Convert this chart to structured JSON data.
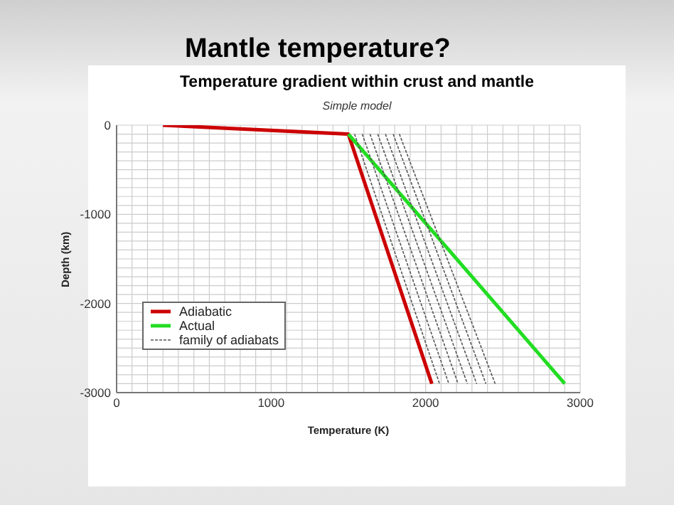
{
  "chart_data": {
    "type": "line",
    "title": "Mantle temperature?",
    "subtitle": "Temperature gradient within crust and mantle",
    "annotations": [
      "Simple model"
    ],
    "xlabel": "Temperature (K)",
    "ylabel": "Depth (km)",
    "xlim": [
      0,
      3000
    ],
    "ylim": [
      -3000,
      0
    ],
    "xticks": [
      0,
      {
        "value": 100,
        "label": null
      },
      {
        "value": 200,
        "label": null
      },
      {
        "value": 300,
        "label": null
      },
      {
        "value": 400,
        "label": null
      },
      {
        "value": 500,
        "label": null
      },
      {
        "value": 600,
        "label": null
      },
      {
        "value": 700,
        "label": null
      },
      {
        "value": 800,
        "label": null
      },
      {
        "value": 900,
        "label": null
      },
      1000,
      {
        "value": 1100,
        "label": null
      },
      {
        "value": 1200,
        "label": null
      },
      {
        "value": 1300,
        "label": null
      },
      {
        "value": 1400,
        "label": null
      },
      {
        "value": 1500,
        "label": null
      },
      {
        "value": 1600,
        "label": null
      },
      {
        "value": 1700,
        "label": null
      },
      {
        "value": 1800,
        "label": null
      },
      {
        "value": 1900,
        "label": null
      },
      2000,
      {
        "value": 2100,
        "label": null
      },
      {
        "value": 2200,
        "label": null
      },
      {
        "value": 2300,
        "label": null
      },
      {
        "value": 2400,
        "label": null
      },
      {
        "value": 2500,
        "label": null
      },
      {
        "value": 2600,
        "label": null
      },
      {
        "value": 2700,
        "label": null
      },
      {
        "value": 2800,
        "label": null
      },
      {
        "value": 2900,
        "label": null
      },
      3000
    ],
    "yticks": [
      -3000,
      {
        "value": -2900,
        "label": null
      },
      {
        "value": -2800,
        "label": null
      },
      {
        "value": -2700,
        "label": null
      },
      {
        "value": -2600,
        "label": null
      },
      {
        "value": -2500,
        "label": null
      },
      {
        "value": -2400,
        "label": null
      },
      {
        "value": -2300,
        "label": null
      },
      {
        "value": -2200,
        "label": null
      },
      {
        "value": -2100,
        "label": null
      },
      -2000,
      {
        "value": -1900,
        "label": null
      },
      {
        "value": -1800,
        "label": null
      },
      {
        "value": -1700,
        "label": null
      },
      {
        "value": -1600,
        "label": null
      },
      {
        "value": -1500,
        "label": null
      },
      {
        "value": -1400,
        "label": null
      },
      {
        "value": -1300,
        "label": null
      },
      {
        "value": -1200,
        "label": null
      },
      {
        "value": -1100,
        "label": null
      },
      -1000,
      {
        "value": -900,
        "label": null
      },
      {
        "value": -800,
        "label": null
      },
      {
        "value": -700,
        "label": null
      },
      {
        "value": -600,
        "label": null
      },
      {
        "value": -500,
        "label": null
      },
      {
        "value": -400,
        "label": null
      },
      {
        "value": -300,
        "label": null
      },
      {
        "value": -200,
        "label": null
      },
      {
        "value": -100,
        "label": null
      },
      0
    ],
    "grid": true,
    "legend": "bottom left",
    "marker": "none",
    "series": [
      {
        "name": "Adiabatic",
        "color": "#cc0000",
        "x": [
          300,
          1500,
          2040
        ],
        "values": [
          0,
          -100,
          -2900
        ]
      },
      {
        "name": "Actual",
        "color": "#22dd22",
        "x": [
          1500,
          2900
        ],
        "values": [
          -100,
          -2900
        ]
      },
      {
        "name": "family of adiabats",
        "color": "#555555",
        "line_style": "dashed",
        "x": [
          1540,
          2090
        ],
        "values": [
          -100,
          -2900
        ]
      },
      {
        "color": "#555555",
        "line_style": "dashed",
        "x": [
          1590,
          2150
        ],
        "values": [
          -100,
          -2900
        ]
      },
      {
        "color": "#555555",
        "line_style": "dashed",
        "x": [
          1640,
          2210
        ],
        "values": [
          -100,
          -2900
        ]
      },
      {
        "color": "#555555",
        "line_style": "dashed",
        "x": [
          1690,
          2270
        ],
        "values": [
          -100,
          -2900
        ]
      },
      {
        "color": "#555555",
        "line_style": "dashed",
        "x": [
          1740,
          2330
        ],
        "values": [
          -100,
          -2900
        ]
      },
      {
        "color": "#555555",
        "line_style": "dashed",
        "x": [
          1790,
          2390
        ],
        "values": [
          -100,
          -2900
        ]
      },
      {
        "color": "#555555",
        "line_style": "dashed",
        "x": [
          1830,
          2450
        ],
        "values": [
          -100,
          -2900
        ]
      }
    ]
  }
}
